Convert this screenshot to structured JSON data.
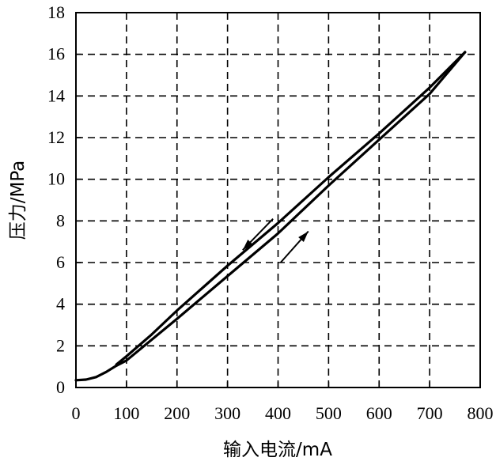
{
  "chart_data": {
    "type": "line",
    "title": "",
    "xlabel": "输入电流/mA",
    "ylabel": "压力/MPa",
    "xlim": [
      0,
      800
    ],
    "ylim": [
      0,
      18
    ],
    "xticks": [
      "0",
      "100",
      "200",
      "300",
      "400",
      "500",
      "600",
      "700",
      "800"
    ],
    "yticks": [
      "0",
      "2",
      "4",
      "6",
      "8",
      "10",
      "12",
      "14",
      "16",
      "18"
    ],
    "grid": "dashed",
    "series": [
      {
        "direction": "increasing",
        "x": [
          0,
          20,
          40,
          60,
          80,
          100,
          200,
          300,
          400,
          500,
          600,
          700,
          770
        ],
        "y": [
          0.35,
          0.38,
          0.5,
          0.75,
          1.05,
          1.3,
          3.3,
          5.35,
          7.4,
          9.7,
          11.9,
          14.1,
          16.1
        ]
      },
      {
        "direction": "decreasing",
        "x": [
          770,
          700,
          600,
          500,
          400,
          300,
          200,
          150,
          100,
          80
        ],
        "y": [
          16.1,
          14.4,
          12.2,
          10.1,
          7.9,
          5.85,
          3.7,
          2.55,
          1.5,
          1.1
        ]
      }
    ],
    "annotations": [
      {
        "type": "arrow",
        "direction": "up-right",
        "series": "increasing",
        "x": [
          405,
          460
        ],
        "y": [
          6.0,
          7.5
        ]
      },
      {
        "type": "arrow",
        "direction": "down-left",
        "series": "decreasing",
        "x": [
          390,
          330
        ],
        "y": [
          8.1,
          6.6
        ]
      }
    ]
  }
}
